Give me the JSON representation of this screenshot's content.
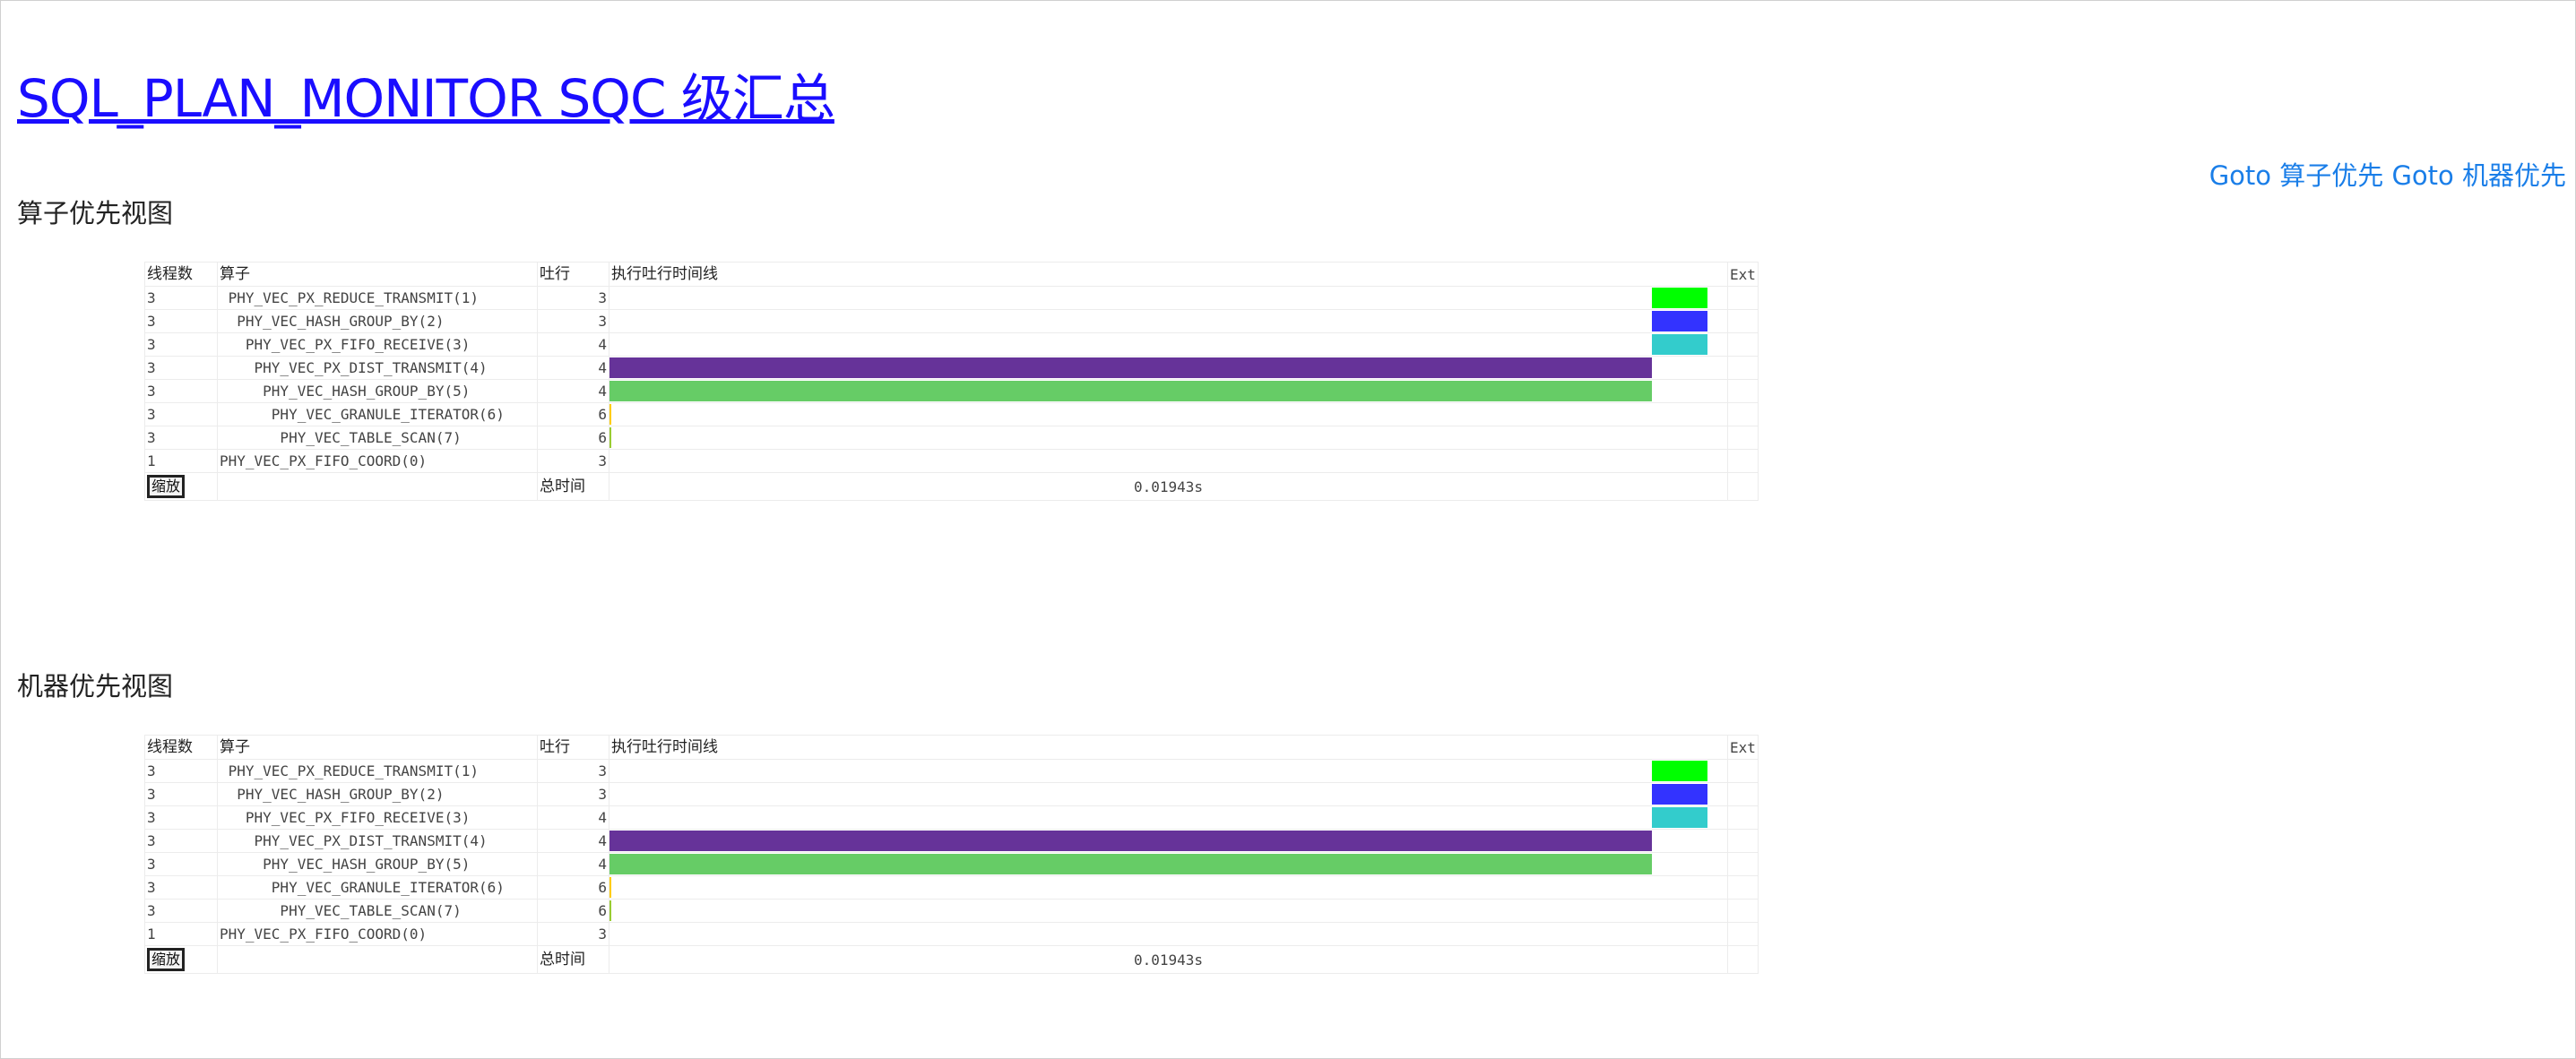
{
  "title": "SQL_PLAN_MONITOR SQC 级汇总",
  "goto": {
    "operator_link": "Goto 算子优先",
    "machine_link": "Goto 机器优先"
  },
  "operator_view": {
    "title": "算子优先视图",
    "headers": {
      "threads": "线程数",
      "operator": "算子",
      "rows": "吐行",
      "timeline": "执行吐行时间线",
      "ext": "Ext"
    },
    "rows": [
      {
        "threads": "3",
        "operator": " PHY_VEC_PX_REDUCE_TRANSMIT(1)",
        "rows": "3",
        "bar_start": 0.9317,
        "bar_end": 0.9817,
        "color": "#00ff00"
      },
      {
        "threads": "3",
        "operator": "  PHY_VEC_HASH_GROUP_BY(2)",
        "rows": "3",
        "bar_start": 0.9317,
        "bar_end": 0.9817,
        "color": "#3333ff"
      },
      {
        "threads": "3",
        "operator": "   PHY_VEC_PX_FIFO_RECEIVE(3)",
        "rows": "4",
        "bar_start": 0.9317,
        "bar_end": 0.9817,
        "color": "#33cccc"
      },
      {
        "threads": "3",
        "operator": "    PHY_VEC_PX_DIST_TRANSMIT(4)",
        "rows": "4",
        "bar_start": 0.0,
        "bar_end": 0.9317,
        "color": "#663399"
      },
      {
        "threads": "3",
        "operator": "     PHY_VEC_HASH_GROUP_BY(5)",
        "rows": "4",
        "bar_start": 0.0,
        "bar_end": 0.9317,
        "color": "#66cc66"
      },
      {
        "threads": "3",
        "operator": "      PHY_VEC_GRANULE_ITERATOR(6)",
        "rows": "6",
        "bar_start": 0.0,
        "bar_end": 0.0015,
        "color": "#ffcc00"
      },
      {
        "threads": "3",
        "operator": "       PHY_VEC_TABLE_SCAN(7)",
        "rows": "6",
        "bar_start": 0.0,
        "bar_end": 0.0015,
        "color": "#99cc33"
      },
      {
        "threads": "1",
        "operator": "PHY_VEC_PX_FIFO_COORD(0)",
        "rows": "3",
        "bar_start": 0.0,
        "bar_end": 0.0,
        "color": "#cccccc"
      }
    ],
    "zoom_label": "缩放",
    "total_label": "总时间",
    "total_time": "0.01943s"
  },
  "machine_view": {
    "title": "机器优先视图",
    "headers": {
      "threads": "线程数",
      "operator": "算子",
      "rows": "吐行",
      "timeline": "执行吐行时间线",
      "ext": "Ext"
    },
    "rows": [
      {
        "threads": "3",
        "operator": " PHY_VEC_PX_REDUCE_TRANSMIT(1)",
        "rows": "3",
        "bar_start": 0.9317,
        "bar_end": 0.9817,
        "color": "#00ff00"
      },
      {
        "threads": "3",
        "operator": "  PHY_VEC_HASH_GROUP_BY(2)",
        "rows": "3",
        "bar_start": 0.9317,
        "bar_end": 0.9817,
        "color": "#3333ff"
      },
      {
        "threads": "3",
        "operator": "   PHY_VEC_PX_FIFO_RECEIVE(3)",
        "rows": "4",
        "bar_start": 0.9317,
        "bar_end": 0.9817,
        "color": "#33cccc"
      },
      {
        "threads": "3",
        "operator": "    PHY_VEC_PX_DIST_TRANSMIT(4)",
        "rows": "4",
        "bar_start": 0.0,
        "bar_end": 0.9317,
        "color": "#663399"
      },
      {
        "threads": "3",
        "operator": "     PHY_VEC_HASH_GROUP_BY(5)",
        "rows": "4",
        "bar_start": 0.0,
        "bar_end": 0.9317,
        "color": "#66cc66"
      },
      {
        "threads": "3",
        "operator": "      PHY_VEC_GRANULE_ITERATOR(6)",
        "rows": "6",
        "bar_start": 0.0,
        "bar_end": 0.0015,
        "color": "#ffcc00"
      },
      {
        "threads": "3",
        "operator": "       PHY_VEC_TABLE_SCAN(7)",
        "rows": "6",
        "bar_start": 0.0,
        "bar_end": 0.0015,
        "color": "#99cc33"
      },
      {
        "threads": "1",
        "operator": "PHY_VEC_PX_FIFO_COORD(0)",
        "rows": "3",
        "bar_start": 0.0,
        "bar_end": 0.0,
        "color": "#cccccc"
      }
    ],
    "zoom_label": "缩放",
    "total_label": "总时间",
    "total_time": "0.01943s"
  }
}
